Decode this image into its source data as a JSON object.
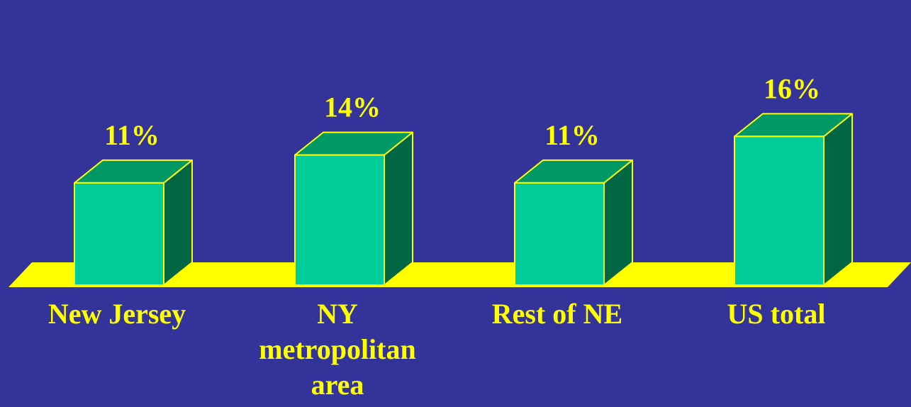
{
  "chart_data": {
    "type": "bar",
    "title": "",
    "xlabel": "",
    "ylabel": "",
    "categories": [
      [
        "New Jersey"
      ],
      [
        "NY",
        "metropolitan",
        "area"
      ],
      [
        "Rest of NE"
      ],
      [
        "US total"
      ]
    ],
    "values": [
      11,
      14,
      11,
      16
    ],
    "value_labels": [
      "11%",
      "14%",
      "11%",
      "16%"
    ],
    "unit": "%",
    "style": "3d-bar",
    "grid": false,
    "legend": "none"
  },
  "colors": {
    "background": "#333399",
    "bar_front": "#00CC99",
    "bar_top": "#009966",
    "bar_side": "#006644",
    "outline": "#FFFF00",
    "floor": "#FFFF00",
    "label_text": "#FFFF00",
    "category_text": "#FFFF00"
  }
}
